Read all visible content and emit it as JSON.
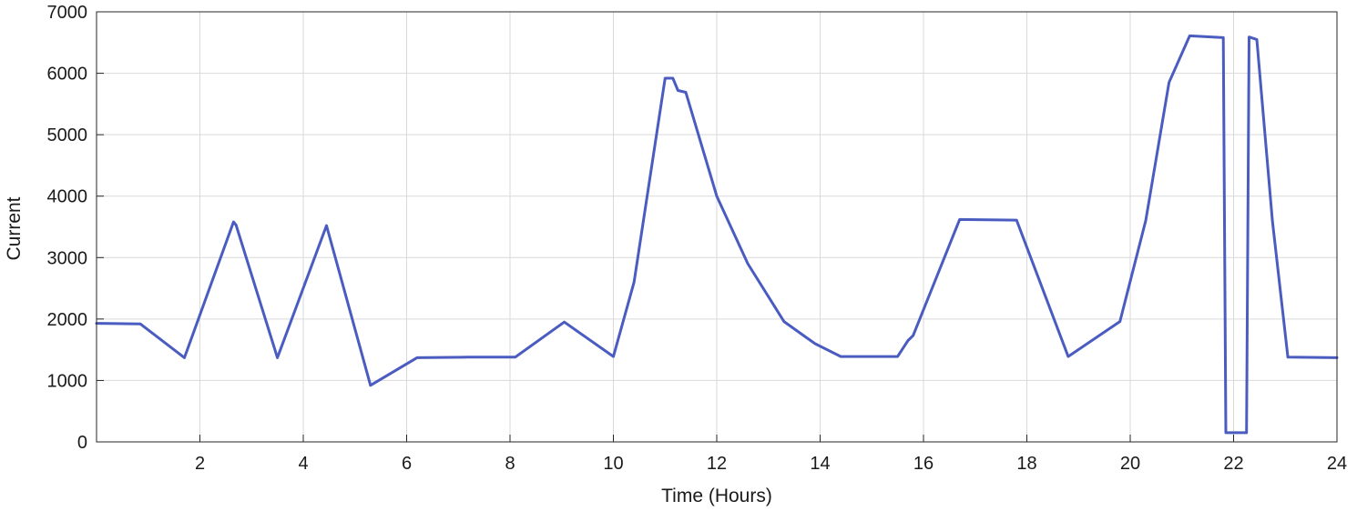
{
  "chart_data": {
    "type": "line",
    "title": "",
    "xlabel": "Time (Hours)",
    "ylabel": "Current",
    "xlim": [
      0,
      24
    ],
    "ylim": [
      0,
      7000
    ],
    "xticks": [
      2,
      4,
      6,
      8,
      10,
      12,
      14,
      16,
      18,
      20,
      22,
      24
    ],
    "yticks": [
      0,
      1000,
      2000,
      3000,
      4000,
      5000,
      6000,
      7000
    ],
    "grid": true,
    "line_color": "#4a5cc0",
    "series": [
      {
        "points": [
          [
            0.0,
            1930
          ],
          [
            0.85,
            1920
          ],
          [
            1.7,
            1370
          ],
          [
            2.65,
            3580
          ],
          [
            2.7,
            3530
          ],
          [
            3.5,
            1370
          ],
          [
            4.45,
            3520
          ],
          [
            5.3,
            920
          ],
          [
            6.2,
            1370
          ],
          [
            7.2,
            1380
          ],
          [
            8.1,
            1380
          ],
          [
            9.05,
            1950
          ],
          [
            10.0,
            1390
          ],
          [
            10.4,
            2600
          ],
          [
            11.0,
            5920
          ],
          [
            11.15,
            5920
          ],
          [
            11.25,
            5720
          ],
          [
            11.4,
            5690
          ],
          [
            12.0,
            4000
          ],
          [
            12.6,
            2900
          ],
          [
            13.3,
            1960
          ],
          [
            13.9,
            1600
          ],
          [
            14.4,
            1390
          ],
          [
            15.5,
            1390
          ],
          [
            15.7,
            1650
          ],
          [
            15.8,
            1730
          ],
          [
            16.7,
            3620
          ],
          [
            17.8,
            3610
          ],
          [
            18.8,
            1390
          ],
          [
            19.8,
            1960
          ],
          [
            20.3,
            3600
          ],
          [
            20.75,
            5850
          ],
          [
            21.15,
            6610
          ],
          [
            21.8,
            6580
          ],
          [
            21.85,
            150
          ],
          [
            22.25,
            150
          ],
          [
            22.3,
            6590
          ],
          [
            22.45,
            6550
          ],
          [
            22.75,
            3600
          ],
          [
            23.05,
            1380
          ],
          [
            24.0,
            1370
          ]
        ]
      }
    ]
  }
}
